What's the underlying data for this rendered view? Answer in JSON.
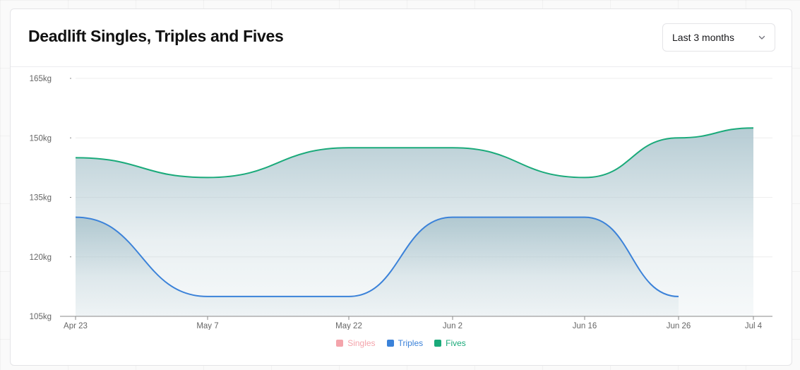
{
  "card": {
    "title": "Deadlift Singles, Triples and Fives",
    "range_select": {
      "selected": "Last 3 months",
      "icon": "chevron-down-icon"
    }
  },
  "colors": {
    "singles": "#f4a4ab",
    "triples": "#3b82d9",
    "fives": "#1aaa7a",
    "area": "#a9c3cc",
    "axis": "#888888",
    "grid": "#eeeeee"
  },
  "chart_data": {
    "type": "line",
    "title": "Deadlift Singles, Triples and Fives",
    "x": [
      "Apr 23",
      "May 7",
      "May 22",
      "Jun 2",
      "Jun 16",
      "Jun 26",
      "Jul 4"
    ],
    "x_ticks": [
      "Apr 23",
      "May 7",
      "May 22",
      "Jun 2",
      "Jun 16",
      "Jun 26",
      "Jul 4"
    ],
    "y_ticks": [
      105,
      120,
      135,
      150,
      165
    ],
    "y_tick_labels": [
      "105kg",
      "120kg",
      "135kg",
      "150kg",
      "165kg"
    ],
    "ylim": [
      105,
      165
    ],
    "y_unit": "kg",
    "grid": true,
    "legend_position": "bottom-center",
    "series": [
      {
        "name": "Singles",
        "key": "singles",
        "values": [
          null,
          null,
          null,
          null,
          null,
          null,
          null
        ],
        "hidden": true
      },
      {
        "name": "Triples",
        "key": "triples",
        "values": [
          130,
          110,
          110,
          130,
          130,
          110,
          null
        ]
      },
      {
        "name": "Fives",
        "key": "fives",
        "values": [
          145,
          140,
          147.5,
          147.5,
          140,
          150,
          152.5
        ]
      }
    ]
  }
}
